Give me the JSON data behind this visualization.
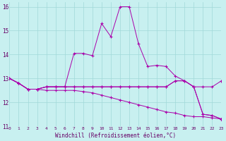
{
  "xlabel": "Windchill (Refroidissement éolien,°C)",
  "background_color": "#c8f0f0",
  "grid_color": "#a0d8d8",
  "line_color": "#aa00aa",
  "xlim": [
    0,
    23
  ],
  "ylim": [
    11,
    16.2
  ],
  "yticks": [
    11,
    12,
    13,
    14,
    15,
    16
  ],
  "xticks": [
    0,
    1,
    2,
    3,
    4,
    5,
    6,
    7,
    8,
    9,
    10,
    11,
    12,
    13,
    14,
    15,
    16,
    17,
    18,
    19,
    20,
    21,
    22,
    23
  ],
  "series": [
    [
      13.0,
      12.8,
      12.55,
      12.55,
      12.65,
      12.65,
      12.65,
      14.05,
      14.05,
      13.95,
      15.3,
      14.75,
      16.0,
      16.0,
      14.45,
      13.5,
      13.55,
      13.5,
      13.1,
      12.9,
      12.65,
      11.5,
      11.45,
      11.3
    ],
    [
      13.0,
      12.8,
      12.55,
      12.55,
      12.65,
      12.65,
      12.65,
      12.65,
      12.65,
      12.65,
      12.65,
      12.65,
      12.65,
      12.65,
      12.65,
      12.65,
      12.65,
      12.65,
      12.9,
      12.9,
      12.65,
      12.65,
      12.65,
      12.9
    ],
    [
      13.0,
      12.8,
      12.55,
      12.55,
      12.65,
      12.65,
      12.65,
      12.65,
      12.65,
      12.65,
      12.65,
      12.65,
      12.65,
      12.65,
      12.65,
      12.65,
      12.65,
      12.65,
      12.9,
      12.9,
      12.65,
      11.5,
      11.45,
      11.3
    ],
    [
      13.0,
      12.8,
      12.55,
      12.55,
      12.5,
      12.5,
      12.5,
      12.5,
      12.45,
      12.4,
      12.3,
      12.2,
      12.1,
      12.0,
      11.9,
      11.8,
      11.7,
      11.6,
      11.55,
      11.45,
      11.4,
      11.4,
      11.35,
      11.3
    ]
  ]
}
